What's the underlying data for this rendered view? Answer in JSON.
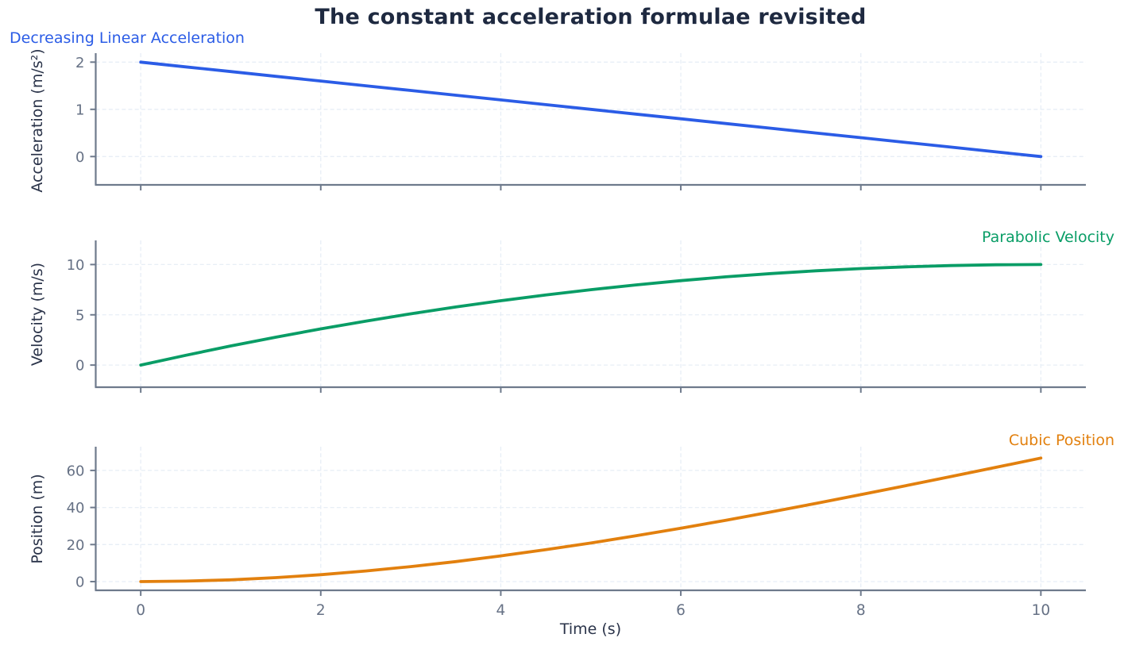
{
  "title": "The constant acceleration formulae revisited",
  "xlabel": "Time (s)",
  "colors": {
    "title": "#1e2940",
    "axis_label": "#2a3349",
    "tick_label": "#667185",
    "spine": "#6e7a8c",
    "grid": "#e7eef6",
    "background": "#ffffff"
  },
  "chart_data": [
    {
      "type": "line",
      "annotation": "Decreasing Linear Acceleration",
      "annotation_position": "top-left",
      "ylabel": "Acceleration (m/s²)",
      "color": "#2b5ce6",
      "x": [
        0,
        0.5,
        1,
        1.5,
        2,
        2.5,
        3,
        3.5,
        4,
        4.5,
        5,
        5.5,
        6,
        6.5,
        7,
        7.5,
        8,
        8.5,
        9,
        9.5,
        10
      ],
      "y": [
        2,
        1.9,
        1.8,
        1.7,
        1.6,
        1.5,
        1.4,
        1.3,
        1.2,
        1.1,
        1.0,
        0.9,
        0.8,
        0.7,
        0.6,
        0.5,
        0.4,
        0.3,
        0.2,
        0.1,
        0
      ],
      "xlim": [
        -0.5,
        10.5
      ],
      "ylim": [
        -0.6,
        2.19
      ],
      "xticks": [
        0,
        2,
        4,
        6,
        8,
        10
      ],
      "yticks": [
        0,
        1,
        2
      ],
      "show_xtick_labels": false,
      "grid": true
    },
    {
      "type": "line",
      "annotation": "Parabolic Velocity",
      "annotation_position": "top-right",
      "ylabel": "Velocity (m/s)",
      "color": "#099d66",
      "x": [
        0,
        0.5,
        1,
        1.5,
        2,
        2.5,
        3,
        3.5,
        4,
        4.5,
        5,
        5.5,
        6,
        6.5,
        7,
        7.5,
        8,
        8.5,
        9,
        9.5,
        10
      ],
      "y": [
        0,
        0.975,
        1.9,
        2.775,
        3.6,
        4.375,
        5.1,
        5.775,
        6.4,
        6.975,
        7.5,
        7.975,
        8.4,
        8.775,
        9.1,
        9.375,
        9.6,
        9.775,
        9.9,
        9.975,
        10
      ],
      "xlim": [
        -0.5,
        10.5
      ],
      "ylim": [
        -2.2,
        12.4
      ],
      "xticks": [
        0,
        2,
        4,
        6,
        8,
        10
      ],
      "yticks": [
        0,
        5,
        10
      ],
      "show_xtick_labels": false,
      "grid": true
    },
    {
      "type": "line",
      "annotation": "Cubic Position",
      "annotation_position": "top-right",
      "ylabel": "Position (m)",
      "color": "#e2800e",
      "x": [
        0,
        0.5,
        1,
        1.5,
        2,
        2.5,
        3,
        3.5,
        4,
        4.5,
        5,
        5.5,
        6,
        6.5,
        7,
        7.5,
        8,
        8.5,
        9,
        9.5,
        10
      ],
      "y": [
        0,
        0.246,
        0.967,
        2.138,
        3.733,
        5.729,
        8.1,
        10.821,
        13.867,
        17.213,
        20.833,
        24.704,
        28.8,
        33.096,
        37.567,
        42.188,
        46.933,
        51.779,
        56.7,
        61.671,
        66.667
      ],
      "xlim": [
        -0.5,
        10.5
      ],
      "ylim": [
        -4.7,
        72.8
      ],
      "xticks": [
        0,
        2,
        4,
        6,
        8,
        10
      ],
      "yticks": [
        0,
        20,
        40,
        60
      ],
      "show_xtick_labels": true,
      "grid": true
    }
  ]
}
